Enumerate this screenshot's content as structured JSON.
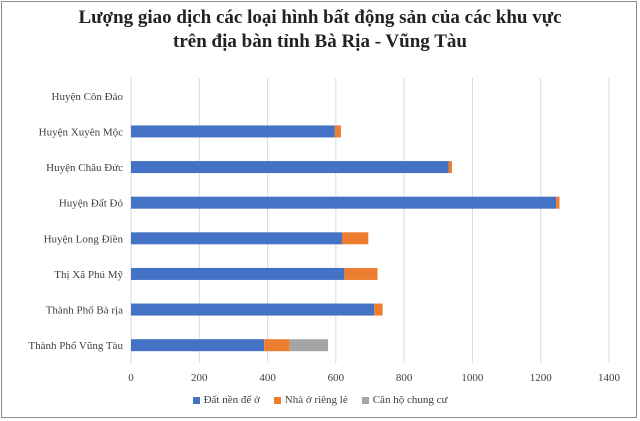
{
  "chart_data": {
    "type": "bar",
    "orientation": "horizontal",
    "stacked": true,
    "title_lines": [
      "Lượng giao dịch các loại hình bất động sản của các khu vực",
      "trên địa bàn tỉnh Bà Rịa - Vũng Tàu"
    ],
    "categories": [
      "Huyện Côn Đảo",
      "Huyện Xuyên Mộc",
      "Huyện Châu Đức",
      "Huyện Đất Đỏ",
      "Huyện Long Điền",
      "Thị Xã Phú Mỹ",
      "Thành Phố Bà rịa",
      "Thành Phố Vũng Tàu"
    ],
    "series": [
      {
        "name": "Đất nền để ở",
        "color": "#4472C4",
        "values": [
          0,
          597,
          930,
          1245,
          618,
          625,
          712,
          390
        ]
      },
      {
        "name": "Nhà ở riêng lẻ",
        "color": "#ED7D31",
        "values": [
          0,
          18,
          10,
          10,
          77,
          97,
          25,
          75
        ]
      },
      {
        "name": "Căn hộ chung cư",
        "color": "#A5A5A5",
        "values": [
          0,
          0,
          0,
          0,
          0,
          0,
          0,
          112
        ]
      }
    ],
    "xlim": [
      0,
      1400
    ],
    "xticks": [
      "0",
      "200",
      "400",
      "600",
      "800",
      "1000",
      "1200",
      "1400"
    ],
    "grid": "vertical",
    "legend_position": "bottom"
  }
}
